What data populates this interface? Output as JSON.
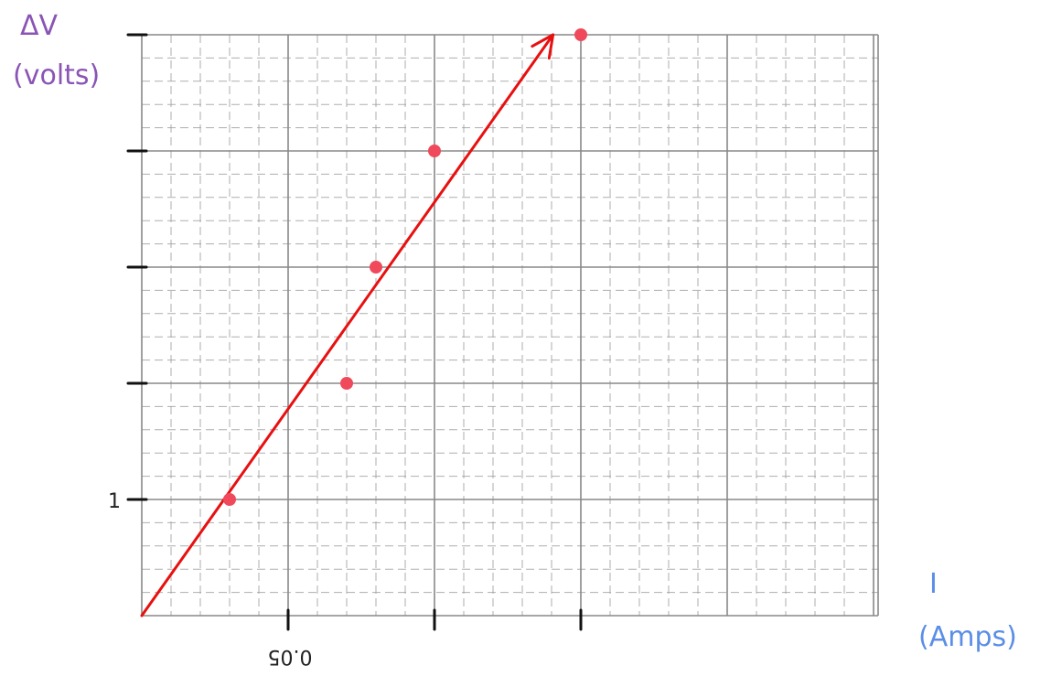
{
  "chart_data": {
    "type": "scatter",
    "title": "",
    "ylabel": {
      "symbol": "ΔV",
      "unit": "(volts)"
    },
    "xlabel": {
      "symbol": "I",
      "unit": "(Amps)"
    },
    "x_ticks": [
      0.05,
      0.1,
      0.15
    ],
    "x_tick_labels": [
      "0.05",
      "",
      ""
    ],
    "y_ticks": [
      1,
      2,
      3,
      4,
      5
    ],
    "y_tick_labels": [
      "1",
      "",
      "",
      "",
      ""
    ],
    "xlim": [
      0,
      0.25
    ],
    "ylim": [
      0,
      5
    ],
    "grid": true,
    "series": [
      {
        "points": [
          {
            "x": 0.03,
            "y": 1.0
          },
          {
            "x": 0.07,
            "y": 2.0
          },
          {
            "x": 0.08,
            "y": 3.0
          },
          {
            "x": 0.1,
            "y": 4.0
          },
          {
            "x": 0.15,
            "y": 5.0
          }
        ],
        "color": "#f0495c"
      }
    ],
    "fit_line": {
      "from": {
        "x": 0.0,
        "y": 0.0
      },
      "to": {
        "x": 0.143,
        "y": 5.0
      },
      "arrow": true,
      "color": "#e81010"
    }
  },
  "colors": {
    "grid": "#9a9a9a",
    "axis_ticks": "#111111",
    "ylabel": "#8a55b5",
    "xlabel": "#5b8ee6"
  }
}
